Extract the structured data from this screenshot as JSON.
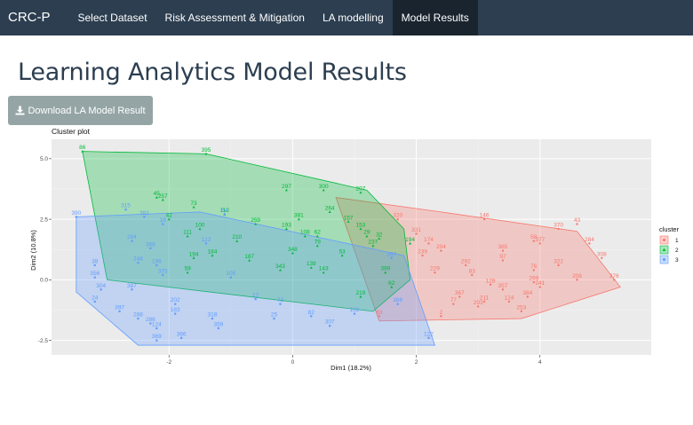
{
  "navbar": {
    "brand": "CRC-P",
    "items": [
      {
        "label": "Select Dataset",
        "active": false
      },
      {
        "label": "Risk Assessment & Mitigation",
        "active": false
      },
      {
        "label": "LA modelling",
        "active": false
      },
      {
        "label": "Model Results",
        "active": true
      }
    ]
  },
  "page": {
    "title": "Learning Analytics Model Results",
    "download_label": "Download LA Model Result",
    "download_icon": "download-icon"
  },
  "colors": {
    "nav_bg": "#2c3e50",
    "nav_active": "#1a242f",
    "button_bg": "#95a5a6",
    "cluster1": "#f8766d",
    "cluster2": "#00ba38",
    "cluster3": "#619cff",
    "panel_bg": "#ebebeb"
  },
  "chart_data": {
    "type": "scatter",
    "title": "Cluster plot",
    "xlabel": "Dim1 (18.2%)",
    "ylabel": "Dim2 (10.8%)",
    "xlim": [
      -3.9,
      5.8
    ],
    "ylim": [
      -3.1,
      5.8
    ],
    "xticks": [
      -2,
      0,
      2,
      4
    ],
    "yticks": [
      -2.5,
      0.0,
      2.5,
      5.0
    ],
    "ytick_labels": [
      "-2.5",
      "0.0",
      "2.5",
      "5.0"
    ],
    "grid": true,
    "legend": {
      "title": "cluster",
      "position": "right",
      "entries": [
        "1",
        "2",
        "3"
      ]
    },
    "hulls": [
      {
        "cluster": "1",
        "points": [
          [
            0.7,
            3.4
          ],
          [
            2.4,
            2.8
          ],
          [
            4.6,
            2.0
          ],
          [
            5.3,
            -0.3
          ],
          [
            3.7,
            -1.6
          ],
          [
            1.4,
            -1.7
          ]
        ]
      },
      {
        "cluster": "2",
        "points": [
          [
            -3.4,
            5.3
          ],
          [
            -1.4,
            5.2
          ],
          [
            1.2,
            3.7
          ],
          [
            1.8,
            2.1
          ],
          [
            1.9,
            0.0
          ],
          [
            1.3,
            -1.3
          ],
          [
            -3.0,
            0.0
          ]
        ]
      },
      {
        "cluster": "3",
        "points": [
          [
            -3.5,
            2.6
          ],
          [
            -1.5,
            2.8
          ],
          [
            1.8,
            1.0
          ],
          [
            2.3,
            -2.7
          ],
          [
            -2.5,
            -2.7
          ],
          [
            -3.5,
            -0.5
          ]
        ]
      }
    ],
    "series": [
      {
        "name": "1",
        "color": "#f8766d",
        "points": [
          {
            "x": 1.7,
            "y": 2.5,
            "label": "320"
          },
          {
            "x": 2.2,
            "y": 1.5,
            "label": "174"
          },
          {
            "x": 2.4,
            "y": 1.2,
            "label": "204"
          },
          {
            "x": 2.1,
            "y": 1.0,
            "label": "239"
          },
          {
            "x": 2.3,
            "y": 0.3,
            "label": "229"
          },
          {
            "x": 2.8,
            "y": 0.6,
            "label": "292"
          },
          {
            "x": 2.9,
            "y": 0.2,
            "label": "83"
          },
          {
            "x": 3.1,
            "y": 2.5,
            "label": "146"
          },
          {
            "x": 3.4,
            "y": 1.2,
            "label": "365"
          },
          {
            "x": 3.9,
            "y": 1.6,
            "label": "58"
          },
          {
            "x": 4.3,
            "y": 2.1,
            "label": "370"
          },
          {
            "x": 4.6,
            "y": 2.3,
            "label": "43"
          },
          {
            "x": 4.8,
            "y": 1.5,
            "label": "284"
          },
          {
            "x": 4.0,
            "y": 1.5,
            "label": "377"
          },
          {
            "x": 5.0,
            "y": 0.9,
            "label": "308"
          },
          {
            "x": 5.2,
            "y": 0.0,
            "label": "276"
          },
          {
            "x": 4.3,
            "y": 0.6,
            "label": "322"
          },
          {
            "x": 4.6,
            "y": 0.0,
            "label": "208"
          },
          {
            "x": 3.9,
            "y": 0.4,
            "label": "76"
          },
          {
            "x": 3.8,
            "y": -0.7,
            "label": "384"
          },
          {
            "x": 3.4,
            "y": 0.8,
            "label": "97"
          },
          {
            "x": 3.2,
            "y": -0.2,
            "label": "128"
          },
          {
            "x": 3.4,
            "y": -0.4,
            "label": "357"
          },
          {
            "x": 3.5,
            "y": -0.9,
            "label": "124"
          },
          {
            "x": 3.7,
            "y": -1.3,
            "label": "253"
          },
          {
            "x": 2.7,
            "y": -0.7,
            "label": "367"
          },
          {
            "x": 2.6,
            "y": -1.0,
            "label": "77"
          },
          {
            "x": 3.0,
            "y": -1.1,
            "label": "293"
          },
          {
            "x": 2.4,
            "y": -1.5,
            "label": "2"
          },
          {
            "x": 1.4,
            "y": -1.5,
            "label": "63"
          },
          {
            "x": 2.0,
            "y": 1.9,
            "label": "331"
          },
          {
            "x": 4.0,
            "y": -0.3,
            "label": "241"
          },
          {
            "x": 3.9,
            "y": -0.1,
            "label": "299"
          },
          {
            "x": 3.1,
            "y": -0.9,
            "label": "211"
          }
        ]
      },
      {
        "name": "2",
        "color": "#00ba38",
        "points": [
          {
            "x": -3.4,
            "y": 5.3,
            "label": "86"
          },
          {
            "x": -1.4,
            "y": 5.2,
            "label": "395"
          },
          {
            "x": -2.2,
            "y": 3.4,
            "label": "45"
          },
          {
            "x": -2.1,
            "y": 3.3,
            "label": "257"
          },
          {
            "x": -1.6,
            "y": 3.0,
            "label": "73"
          },
          {
            "x": -2.0,
            "y": 2.5,
            "label": "42"
          },
          {
            "x": -1.5,
            "y": 2.1,
            "label": "100"
          },
          {
            "x": -1.7,
            "y": 1.8,
            "label": "111"
          },
          {
            "x": -1.1,
            "y": 2.7,
            "label": "112"
          },
          {
            "x": -0.6,
            "y": 2.3,
            "label": "259"
          },
          {
            "x": -0.1,
            "y": 3.7,
            "label": "297"
          },
          {
            "x": 0.5,
            "y": 3.7,
            "label": "300"
          },
          {
            "x": 1.1,
            "y": 3.6,
            "label": "207"
          },
          {
            "x": 0.1,
            "y": 2.5,
            "label": "381"
          },
          {
            "x": 0.6,
            "y": 2.8,
            "label": "264"
          },
          {
            "x": 0.9,
            "y": 2.4,
            "label": "157"
          },
          {
            "x": 1.1,
            "y": 2.1,
            "label": "153"
          },
          {
            "x": 1.2,
            "y": 1.8,
            "label": "29"
          },
          {
            "x": 1.4,
            "y": 1.7,
            "label": "32"
          },
          {
            "x": 1.3,
            "y": 1.4,
            "label": "237"
          },
          {
            "x": -0.1,
            "y": 2.1,
            "label": "193"
          },
          {
            "x": 0.2,
            "y": 1.8,
            "label": "108"
          },
          {
            "x": 0.4,
            "y": 1.8,
            "label": "62"
          },
          {
            "x": 0.4,
            "y": 1.4,
            "label": "79"
          },
          {
            "x": -0.9,
            "y": 1.6,
            "label": "210"
          },
          {
            "x": 0.0,
            "y": 1.1,
            "label": "348"
          },
          {
            "x": 0.8,
            "y": 1.0,
            "label": "53"
          },
          {
            "x": -0.7,
            "y": 0.8,
            "label": "187"
          },
          {
            "x": 0.3,
            "y": 0.5,
            "label": "139"
          },
          {
            "x": 0.5,
            "y": 0.3,
            "label": "143"
          },
          {
            "x": -0.2,
            "y": 0.4,
            "label": "343"
          },
          {
            "x": 1.5,
            "y": 0.3,
            "label": "399"
          },
          {
            "x": 1.6,
            "y": -0.3,
            "label": "62"
          },
          {
            "x": 1.1,
            "y": -0.7,
            "label": "219"
          },
          {
            "x": 1.9,
            "y": 1.5,
            "label": "194"
          },
          {
            "x": -1.3,
            "y": 1.0,
            "label": "184"
          },
          {
            "x": -1.6,
            "y": 0.9,
            "label": "194"
          },
          {
            "x": -1.7,
            "y": 0.3,
            "label": "59"
          }
        ]
      },
      {
        "name": "3",
        "color": "#619cff",
        "points": [
          {
            "x": -3.5,
            "y": 2.6,
            "label": "390"
          },
          {
            "x": -2.7,
            "y": 2.9,
            "label": "315"
          },
          {
            "x": -2.4,
            "y": 2.6,
            "label": "382"
          },
          {
            "x": -2.1,
            "y": 2.3,
            "label": "18"
          },
          {
            "x": -2.6,
            "y": 1.6,
            "label": "294"
          },
          {
            "x": -2.3,
            "y": 1.3,
            "label": "368"
          },
          {
            "x": -2.5,
            "y": 0.7,
            "label": "248"
          },
          {
            "x": -2.2,
            "y": 0.6,
            "label": "196"
          },
          {
            "x": -3.2,
            "y": 0.6,
            "label": "38"
          },
          {
            "x": -3.2,
            "y": 0.1,
            "label": "356"
          },
          {
            "x": -3.1,
            "y": -0.4,
            "label": "304"
          },
          {
            "x": -2.6,
            "y": -0.4,
            "label": "387"
          },
          {
            "x": -3.2,
            "y": -0.9,
            "label": "24"
          },
          {
            "x": -2.8,
            "y": -1.3,
            "label": "397"
          },
          {
            "x": -2.5,
            "y": -1.6,
            "label": "288"
          },
          {
            "x": -2.3,
            "y": -1.8,
            "label": "286"
          },
          {
            "x": -2.2,
            "y": -2.0,
            "label": "124"
          },
          {
            "x": -2.2,
            "y": -2.5,
            "label": "369"
          },
          {
            "x": -1.8,
            "y": -2.4,
            "label": "366"
          },
          {
            "x": -1.9,
            "y": -1.0,
            "label": "202"
          },
          {
            "x": -1.9,
            "y": -1.4,
            "label": "183"
          },
          {
            "x": -1.3,
            "y": -1.6,
            "label": "318"
          },
          {
            "x": -1.2,
            "y": -2.0,
            "label": "359"
          },
          {
            "x": -0.3,
            "y": -1.6,
            "label": "25"
          },
          {
            "x": -0.2,
            "y": -1.0,
            "label": "72"
          },
          {
            "x": 0.3,
            "y": -1.5,
            "label": "82"
          },
          {
            "x": 0.6,
            "y": -1.9,
            "label": "307"
          },
          {
            "x": 1.0,
            "y": -1.4,
            "label": "162"
          },
          {
            "x": 1.7,
            "y": -1.0,
            "label": "388"
          },
          {
            "x": 2.2,
            "y": -2.4,
            "label": "122"
          },
          {
            "x": 1.6,
            "y": 0.9,
            "label": "387"
          },
          {
            "x": -1.4,
            "y": 1.5,
            "label": "122"
          },
          {
            "x": -2.1,
            "y": 0.2,
            "label": "375"
          },
          {
            "x": -1.1,
            "y": 2.7,
            "label": "54"
          },
          {
            "x": -1.0,
            "y": 0.1,
            "label": "105"
          },
          {
            "x": -0.6,
            "y": -0.8,
            "label": "12"
          }
        ]
      }
    ]
  }
}
